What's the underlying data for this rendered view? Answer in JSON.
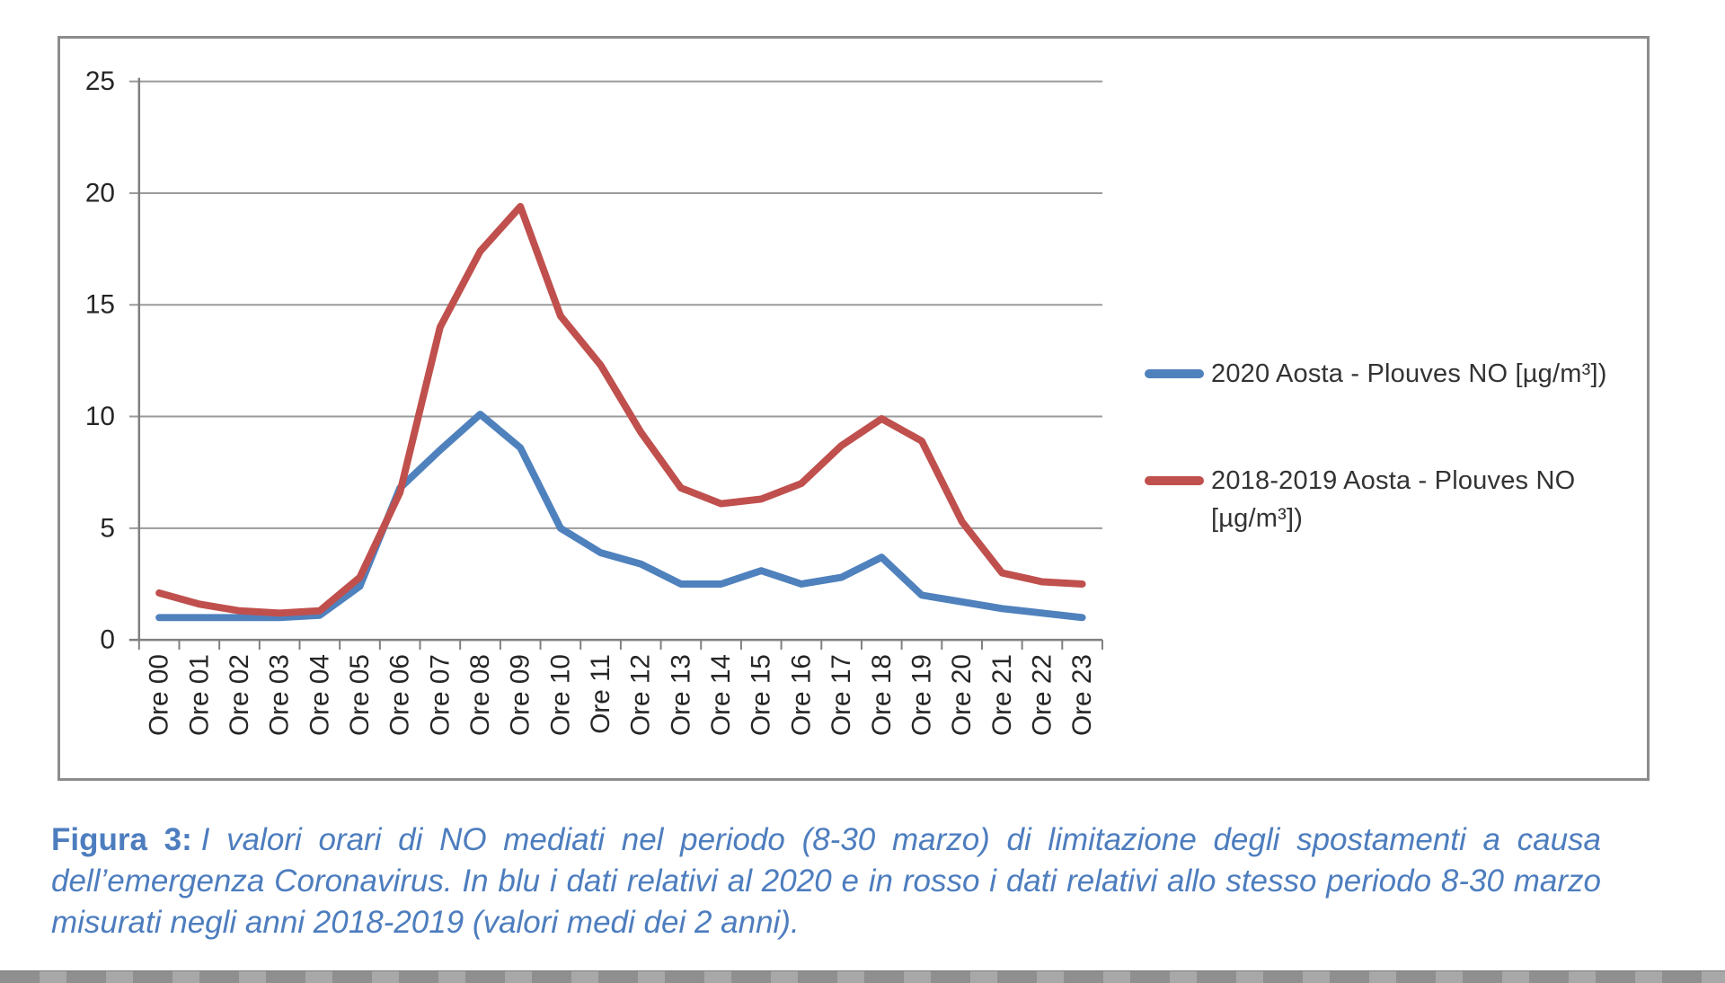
{
  "figure": {
    "caption_label": "Figura 3:",
    "caption_text": "I valori orari di NO mediati nel periodo (8-30 marzo) di limitazione degli spostamenti a causa dell’emergenza Coronavirus. In blu i dati relativi al 2020 e in rosso i dati relativi allo stesso periodo 8-30 marzo misurati negli anni 2018-2019 (valori medi dei 2 anni)."
  },
  "chart_data": {
    "type": "line",
    "title": "",
    "xlabel": "",
    "ylabel": "",
    "categories": [
      "Ore 00",
      "Ore 01",
      "Ore 02",
      "Ore 03",
      "Ore 04",
      "Ore 05",
      "Ore 06",
      "Ore 07",
      "Ore 08",
      "Ore 09",
      "Ore 10",
      "Ore 11",
      "Ore 12",
      "Ore 13",
      "Ore 14",
      "Ore 15",
      "Ore 16",
      "Ore 17",
      "Ore 18",
      "Ore 19",
      "Ore 20",
      "Ore 21",
      "Ore 22",
      "Ore 23"
    ],
    "series": [
      {
        "name": "2020 Aosta - Plouves NO [µg/m³])",
        "color": "#4F81BD",
        "values": [
          1.0,
          1.0,
          1.0,
          1.0,
          1.1,
          2.4,
          6.8,
          8.5,
          10.1,
          8.6,
          5.0,
          3.9,
          3.4,
          2.5,
          2.5,
          3.1,
          2.5,
          2.8,
          3.7,
          2.0,
          1.7,
          1.4,
          1.2,
          1.0
        ]
      },
      {
        "name": "2018-2019 Aosta - Plouves NO [µg/m³])",
        "color": "#C0504D",
        "values": [
          2.1,
          1.6,
          1.3,
          1.2,
          1.3,
          2.8,
          6.6,
          14.0,
          17.4,
          19.4,
          14.5,
          12.3,
          9.3,
          6.8,
          6.1,
          6.3,
          7.0,
          8.7,
          9.9,
          8.9,
          5.3,
          3.0,
          2.6,
          2.5
        ]
      }
    ],
    "ylim": [
      0,
      25
    ],
    "ytick_step": 5,
    "grid": true,
    "legend_position": "right"
  },
  "style": {
    "gridline_color": "#9a9a9a",
    "axis_color": "#7f7f7f",
    "tick_label_color": "#262626",
    "caption_color": "#4d7dbe",
    "frame_border_color": "#8c8c8c"
  }
}
